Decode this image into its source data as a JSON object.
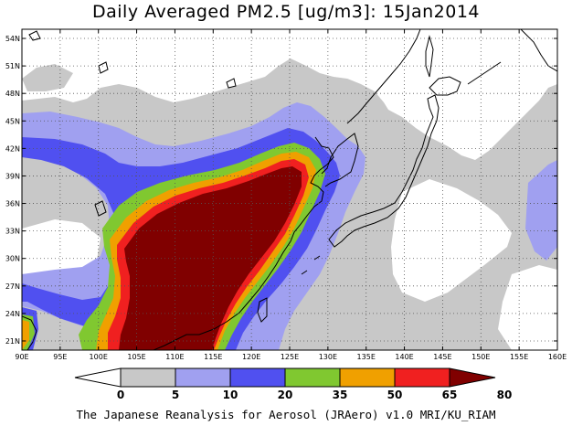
{
  "title": "Daily Averaged PM2.5 [ug/m3]: 15Jan2014",
  "credit": "The Japanese Reanalysis for Aerosol (JRAero) v1.0 MRI/KU_RIAM",
  "map": {
    "lon_range": [
      90,
      160
    ],
    "lat_range": [
      20,
      55
    ],
    "lon_ticks": [
      "90E",
      "95E",
      "100E",
      "105E",
      "110E",
      "115E",
      "120E",
      "125E",
      "130E",
      "135E",
      "140E",
      "145E",
      "150E",
      "155E",
      "160E"
    ],
    "lat_ticks": [
      "21N",
      "24N",
      "27N",
      "30N",
      "33N",
      "36N",
      "39N",
      "42N",
      "45N",
      "48N",
      "51N",
      "54N"
    ],
    "grid": true,
    "grid_style": "dotted"
  },
  "colorbar": {
    "labels": [
      "0",
      "5",
      "10",
      "20",
      "35",
      "50",
      "65",
      "80"
    ],
    "colors": [
      "#ffffff",
      "#c8c8c8",
      "#a0a0f0",
      "#5050f0",
      "#80c830",
      "#f0a000",
      "#f02020",
      "#800000"
    ]
  }
}
